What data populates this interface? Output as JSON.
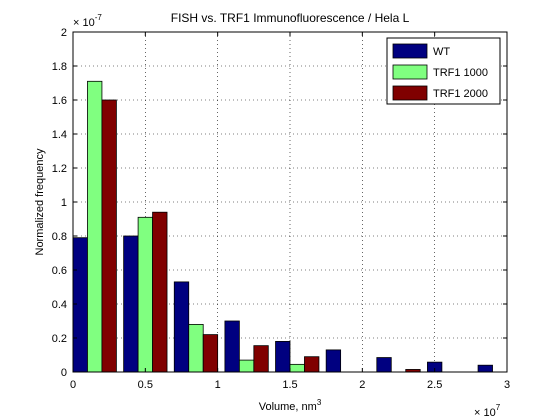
{
  "chart_data": {
    "type": "bar",
    "title": "FISH vs. TRF1 Immunofluorescence / Hela L",
    "xlabel_main": "Volume, nm",
    "xlabel_sup": "3",
    "ylabel": "Normalized frequency",
    "x_exponent_base": "× 10",
    "x_exponent_power": "7",
    "y_exponent_base": "× 10",
    "y_exponent_power": "-7",
    "xlim": [
      0,
      3
    ],
    "ylim": [
      0,
      2
    ],
    "xticks": [
      0,
      0.5,
      1,
      1.5,
      2,
      2.5,
      3
    ],
    "xtick_labels": [
      "0",
      "0.5",
      "1",
      "1.5",
      "2",
      "2.5",
      "3"
    ],
    "yticks": [
      0,
      0.2,
      0.4,
      0.6,
      0.8,
      1,
      1.2,
      1.4,
      1.6,
      1.8,
      2
    ],
    "ytick_labels": [
      "0",
      "0.2",
      "0.4",
      "0.6",
      "0.8",
      "1",
      "1.2",
      "1.4",
      "1.6",
      "1.8",
      "2"
    ],
    "grid": true,
    "legend_position": "top-right",
    "series": [
      {
        "name": "WT",
        "color": "#000080",
        "x": [
          0,
          0.35,
          0.7,
          1.05,
          1.4,
          1.75,
          2.1,
          2.45,
          2.8
        ],
        "values": [
          0.79,
          0.8,
          0.53,
          0.3,
          0.18,
          0.13,
          0.085,
          0.058,
          0.04
        ]
      },
      {
        "name": "TRF1 1000",
        "color": "#80ff80",
        "x": [
          0.1,
          0.45,
          0.8,
          1.15,
          1.5
        ],
        "values": [
          1.71,
          0.91,
          0.28,
          0.07,
          0.045
        ]
      },
      {
        "name": "TRF1 2000",
        "color": "#800000",
        "x": [
          0.2,
          0.55,
          0.9,
          1.25,
          1.6,
          1.95,
          2.3
        ],
        "values": [
          1.6,
          0.94,
          0.22,
          0.155,
          0.09,
          0.0,
          0.015
        ]
      }
    ]
  }
}
